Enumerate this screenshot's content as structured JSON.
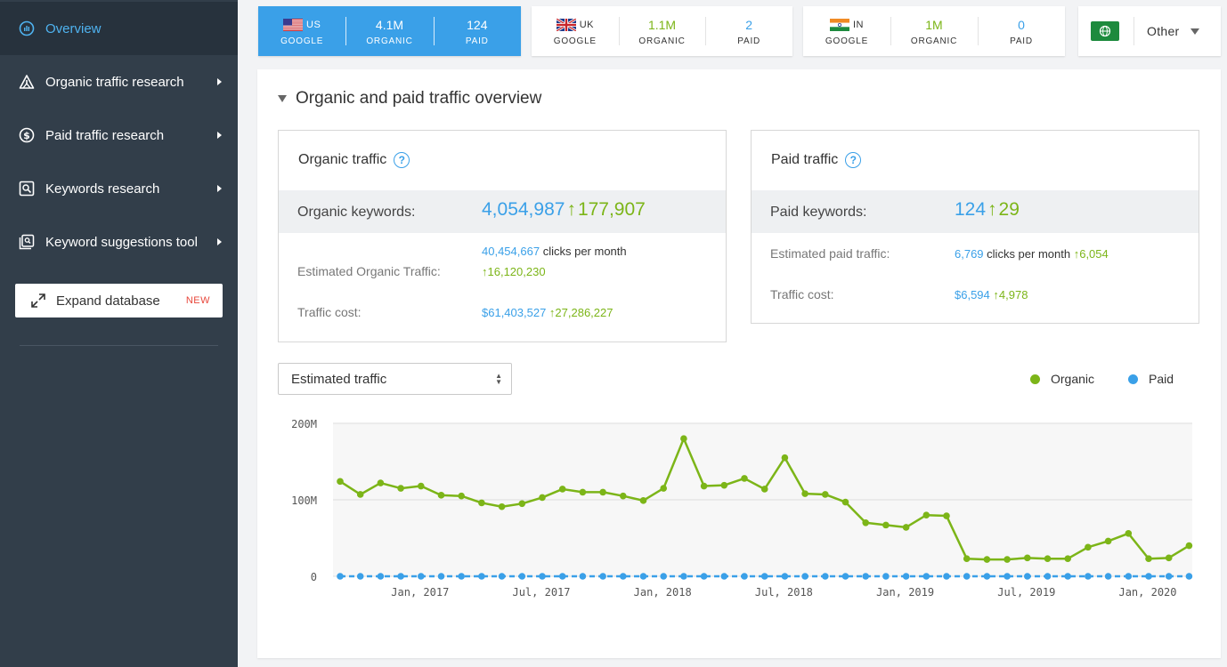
{
  "sidebar": {
    "items": [
      {
        "label": "Overview",
        "icon": "gauge-icon",
        "active": true
      },
      {
        "label": "Organic traffic research",
        "icon": "warning-triangle-icon"
      },
      {
        "label": "Paid traffic research",
        "icon": "dollar-icon"
      },
      {
        "label": "Keywords research",
        "icon": "keyword-search-icon"
      },
      {
        "label": "Keyword suggestions tool",
        "icon": "suggestions-icon"
      }
    ],
    "expand": {
      "label": "Expand database",
      "badge": "NEW"
    }
  },
  "databases": [
    {
      "country": "US",
      "engine": "GOOGLE",
      "organic": "4.1M",
      "organic_label": "ORGANIC",
      "paid": "124",
      "paid_label": "PAID",
      "active": true
    },
    {
      "country": "UK",
      "engine": "GOOGLE",
      "organic": "1.1M",
      "organic_label": "ORGANIC",
      "paid": "2",
      "paid_label": "PAID"
    },
    {
      "country": "IN",
      "engine": "GOOGLE",
      "organic": "1M",
      "organic_label": "ORGANIC",
      "paid": "0",
      "paid_label": "PAID"
    }
  ],
  "other": {
    "label": "Other"
  },
  "section_title": "Organic and paid traffic overview",
  "organic_card": {
    "title": "Organic traffic",
    "keywords_label": "Organic keywords:",
    "keywords_value": "4,054,987",
    "keywords_delta": "177,907",
    "traffic_label": "Estimated Organic Traffic:",
    "traffic_value": "40,454,667",
    "traffic_suffix": "clicks per month",
    "traffic_delta": "16,120,230",
    "cost_label": "Traffic cost:",
    "cost_value": "$61,403,527",
    "cost_delta": "27,286,227"
  },
  "paid_card": {
    "title": "Paid traffic",
    "keywords_label": "Paid keywords:",
    "keywords_value": "124",
    "keywords_delta": "29",
    "traffic_label": "Estimated paid traffic:",
    "traffic_value": "6,769",
    "traffic_suffix": "clicks per month",
    "traffic_delta": "6,054",
    "cost_label": "Traffic cost:",
    "cost_value": "$6,594",
    "cost_delta": "4,978"
  },
  "metric_select": {
    "value": "Estimated traffic"
  },
  "legend": [
    {
      "label": "Organic",
      "color": "#7cb518"
    },
    {
      "label": "Paid",
      "color": "#3aa0e8"
    }
  ],
  "chart_data": {
    "type": "line",
    "x_tick_labels": [
      "Jan, 2017",
      "Jul, 2017",
      "Jan, 2018",
      "Jul, 2018",
      "Jan, 2019",
      "Jul, 2019",
      "Jan, 2020"
    ],
    "y_tick_labels": [
      "200M",
      "100M",
      "0"
    ],
    "ylim": [
      0,
      200
    ],
    "y_unit": "M",
    "series": [
      {
        "name": "Organic",
        "color": "#7cb518",
        "values": [
          124,
          107,
          122,
          115,
          118,
          106,
          105,
          96,
          91,
          95,
          103,
          114,
          110,
          110,
          105,
          99,
          115,
          180,
          118,
          119,
          128,
          114,
          155,
          108,
          107,
          97,
          70,
          67,
          64,
          80,
          79,
          23,
          22,
          22,
          24,
          23,
          23,
          38,
          46,
          56,
          23,
          24,
          40
        ]
      },
      {
        "name": "Paid",
        "color": "#3aa0e8",
        "values": [
          0,
          0,
          0,
          0,
          0,
          0,
          0,
          0,
          0,
          0,
          0,
          0,
          0,
          0,
          0,
          0,
          0,
          0,
          0,
          0,
          0,
          0,
          0,
          0,
          0,
          0,
          0,
          0,
          0,
          0,
          0,
          0,
          0,
          0,
          0,
          0,
          0,
          0,
          0,
          0,
          0,
          0,
          0
        ]
      }
    ]
  }
}
